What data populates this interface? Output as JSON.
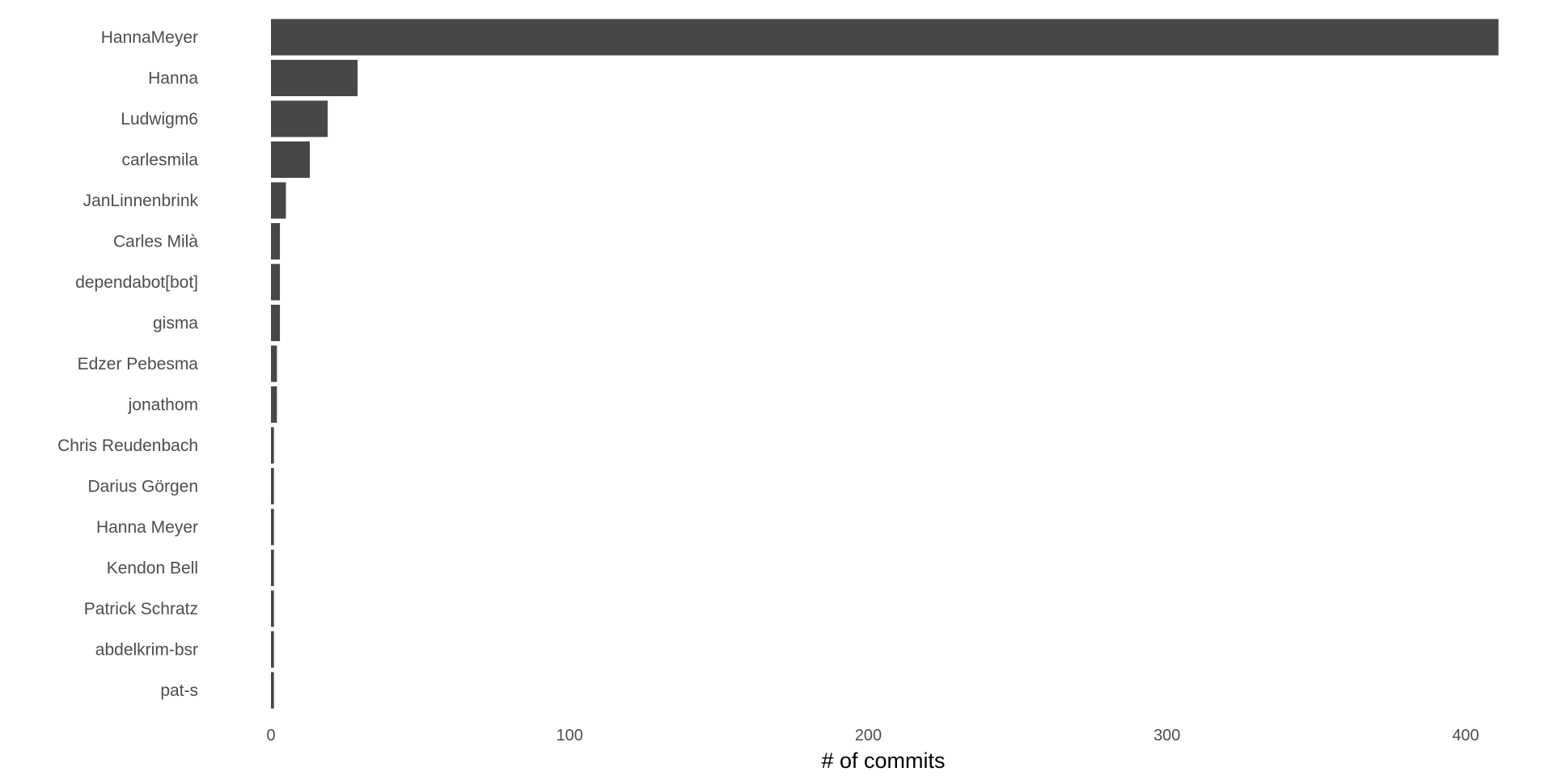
{
  "chart_data": {
    "type": "bar",
    "orientation": "horizontal",
    "categories": [
      "HannaMeyer",
      "Hanna",
      "Ludwigm6",
      "carlesmila",
      "JanLinnenbrink",
      "Carles Milà",
      "dependabot[bot]",
      "gisma",
      "Edzer Pebesma",
      "jonathom",
      "Chris Reudenbach",
      "Darius Görgen",
      "Hanna Meyer",
      "Kendon Bell",
      "Patrick Schratz",
      "abdelkrim-bsr",
      "pat-s"
    ],
    "values": [
      411,
      29,
      19,
      13,
      5,
      3,
      3,
      3,
      2,
      2,
      1,
      1,
      1,
      1,
      1,
      1,
      1
    ],
    "xlabel": "# of commits",
    "ylabel": "",
    "xlim": [
      0,
      411
    ],
    "xticks": [
      "0",
      "100",
      "200",
      "300",
      "400"
    ],
    "grid": false,
    "colors": {
      "bar": "#474747"
    }
  }
}
